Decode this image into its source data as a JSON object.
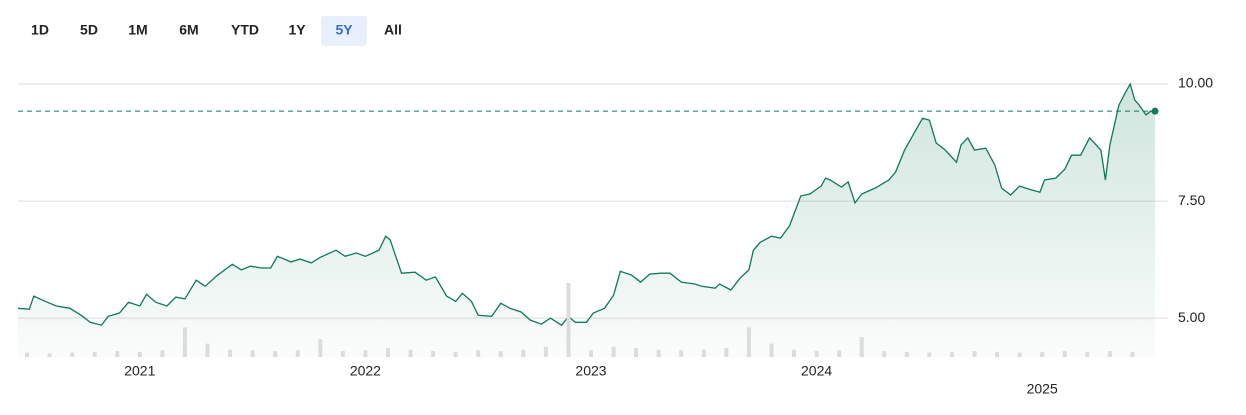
{
  "range_buttons": [
    "1D",
    "5D",
    "1M",
    "6M",
    "YTD",
    "1Y",
    "5Y",
    "All"
  ],
  "selected_range": "5Y",
  "chart_data": {
    "type": "line",
    "x": [
      2020.46,
      2020.51,
      2020.53,
      2020.58,
      2020.63,
      2020.69,
      2020.74,
      2020.78,
      2020.83,
      2020.86,
      2020.91,
      2020.95,
      2021.0,
      2021.03,
      2021.07,
      2021.12,
      2021.16,
      2021.2,
      2021.25,
      2021.29,
      2021.34,
      2021.41,
      2021.45,
      2021.49,
      2021.54,
      2021.58,
      2021.61,
      2021.67,
      2021.71,
      2021.76,
      2021.8,
      2021.87,
      2021.91,
      2021.96,
      2022.0,
      2022.06,
      2022.09,
      2022.11,
      2022.16,
      2022.22,
      2022.27,
      2022.31,
      2022.36,
      2022.4,
      2022.43,
      2022.47,
      2022.5,
      2022.56,
      2022.6,
      2022.64,
      2022.69,
      2022.73,
      2022.78,
      2022.82,
      2022.87,
      2022.9,
      2022.93,
      2022.98,
      2023.01,
      2023.06,
      2023.1,
      2023.13,
      2023.18,
      2023.22,
      2023.26,
      2023.31,
      2023.35,
      2023.4,
      2023.46,
      2023.49,
      2023.55,
      2023.57,
      2023.62,
      2023.66,
      2023.7,
      2023.72,
      2023.75,
      2023.8,
      2023.84,
      2023.88,
      2023.93,
      2023.97,
      2024.02,
      2024.04,
      2024.06,
      2024.11,
      2024.14,
      2024.17,
      2024.2,
      2024.26,
      2024.32,
      2024.35,
      2024.39,
      2024.44,
      2024.47,
      2024.5,
      2024.53,
      2024.57,
      2024.62,
      2024.64,
      2024.67,
      2024.7,
      2024.75,
      2024.79,
      2024.82,
      2024.86,
      2024.9,
      2024.95,
      2024.99,
      2025.01,
      2025.06,
      2025.1,
      2025.13,
      2025.17,
      2025.21,
      2025.26,
      2025.28,
      2025.3,
      2025.34,
      2025.37,
      2025.39,
      2025.41,
      2025.43,
      2025.46,
      2025.48,
      2025.5
    ],
    "series": [
      {
        "color": "#0f7a55",
        "values": [
          5.21,
          5.19,
          5.47,
          5.36,
          5.26,
          5.21,
          5.06,
          4.91,
          4.85,
          5.04,
          5.11,
          5.34,
          5.26,
          5.51,
          5.34,
          5.26,
          5.45,
          5.41,
          5.81,
          5.68,
          5.9,
          6.15,
          6.03,
          6.11,
          6.07,
          6.07,
          6.32,
          6.2,
          6.26,
          6.18,
          6.3,
          6.45,
          6.32,
          6.39,
          6.32,
          6.45,
          6.75,
          6.67,
          5.96,
          5.98,
          5.81,
          5.88,
          5.47,
          5.36,
          5.53,
          5.36,
          5.06,
          5.04,
          5.32,
          5.21,
          5.13,
          4.96,
          4.87,
          5.0,
          4.85,
          5.04,
          4.91,
          4.91,
          5.11,
          5.21,
          5.49,
          6.0,
          5.92,
          5.77,
          5.94,
          5.96,
          5.96,
          5.77,
          5.73,
          5.68,
          5.64,
          5.73,
          5.6,
          5.85,
          6.03,
          6.45,
          6.62,
          6.75,
          6.71,
          6.97,
          7.61,
          7.65,
          7.82,
          7.99,
          7.95,
          7.8,
          7.91,
          7.46,
          7.65,
          7.78,
          7.95,
          8.12,
          8.59,
          9.02,
          9.27,
          9.23,
          8.74,
          8.59,
          8.33,
          8.7,
          8.85,
          8.59,
          8.63,
          8.27,
          7.78,
          7.63,
          7.82,
          7.74,
          7.69,
          7.95,
          7.99,
          8.18,
          8.48,
          8.48,
          8.85,
          8.59,
          7.95,
          8.7,
          9.55,
          9.83,
          10.0,
          9.66,
          9.55,
          9.34,
          9.42,
          9.42
        ]
      },
      {
        "color": "#dcdcdc",
        "axis": "y2",
        "x": [
          2020.5,
          2020.6,
          2020.7,
          2020.8,
          2020.9,
          2021.0,
          2021.1,
          2021.2,
          2021.3,
          2021.4,
          2021.5,
          2021.6,
          2021.7,
          2021.8,
          2021.9,
          2022.0,
          2022.1,
          2022.2,
          2022.3,
          2022.4,
          2022.5,
          2022.6,
          2022.7,
          2022.8,
          2022.9,
          2023.0,
          2023.1,
          2023.2,
          2023.3,
          2023.4,
          2023.5,
          2023.6,
          2023.7,
          2023.8,
          2023.9,
          2024.0,
          2024.1,
          2024.2,
          2024.3,
          2024.4,
          2024.5,
          2024.6,
          2024.7,
          2024.8,
          2024.9,
          2025.0,
          2025.1,
          2025.2,
          2025.3,
          2025.4
        ],
        "values": [
          6,
          5,
          6,
          7,
          8,
          7,
          9,
          40,
          18,
          10,
          9,
          8,
          9,
          24,
          8,
          9,
          12,
          10,
          8,
          7,
          9,
          8,
          10,
          14,
          100,
          9,
          14,
          12,
          10,
          9,
          10,
          12,
          40,
          18,
          10,
          8,
          9,
          27,
          8,
          7,
          6,
          7,
          8,
          7,
          6,
          7,
          8,
          7,
          8,
          7
        ]
      }
    ],
    "xlim": [
      2020.46,
      2025.5
    ],
    "xticks": [
      2021,
      2022,
      2023,
      2024,
      2025
    ],
    "ylim": [
      4.17,
      10.47
    ],
    "yticks": [
      {
        "value": 5,
        "label": "5.00"
      },
      {
        "value": 7.5,
        "label": "7.50"
      },
      {
        "value": 10,
        "label": "10.00"
      }
    ],
    "y2lim": [
      0,
      100
    ],
    "grid": true
  }
}
